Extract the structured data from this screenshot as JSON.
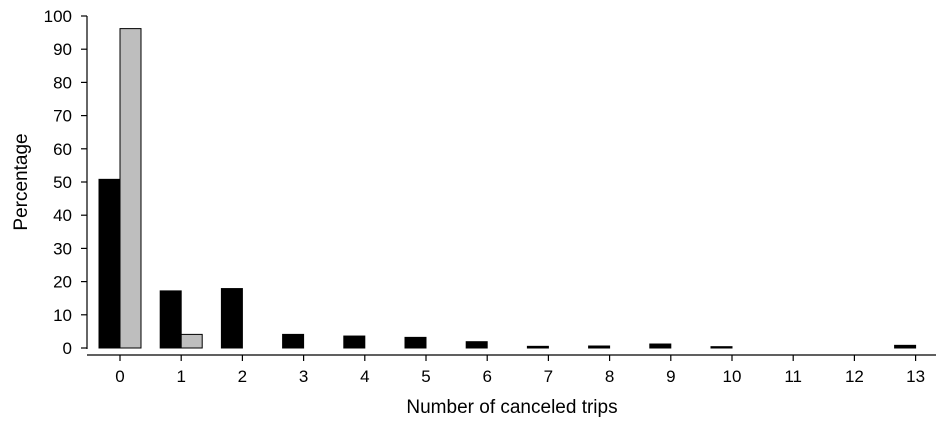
{
  "chart_data": {
    "type": "bar",
    "title": "",
    "xlabel": "Number of canceled trips",
    "ylabel": "Percentage",
    "categories": [
      "0",
      "1",
      "2",
      "3",
      "4",
      "5",
      "6",
      "7",
      "8",
      "9",
      "10",
      "11",
      "12",
      "13"
    ],
    "ylim": [
      0,
      100
    ],
    "yticks": [
      0,
      10,
      20,
      30,
      40,
      50,
      60,
      70,
      80,
      90,
      100
    ],
    "grid": false,
    "legend": "none",
    "series": [
      {
        "color": "#000000",
        "values": [
          50.8,
          17.2,
          17.9,
          4.1,
          3.6,
          3.2,
          1.9,
          0.5,
          0.6,
          1.2,
          0.4,
          0,
          0,
          0.8
        ]
      },
      {
        "color": "#bebebe",
        "values": [
          96.2,
          4.1,
          0,
          0,
          0,
          0,
          0,
          0,
          0,
          0,
          0,
          0,
          0,
          0
        ]
      }
    ]
  }
}
